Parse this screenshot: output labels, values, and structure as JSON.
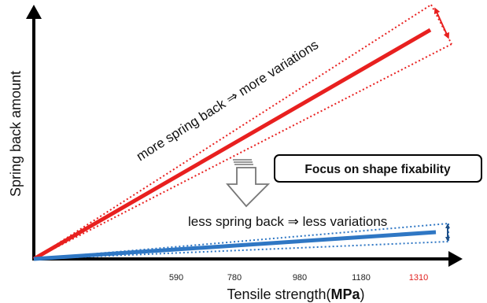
{
  "axes": {
    "x_title": "Tensile strength",
    "x_unit": "MPa",
    "y_title": "Spring back amount"
  },
  "x_ticks": [
    {
      "label": "590",
      "highlight": false
    },
    {
      "label": "780",
      "highlight": false
    },
    {
      "label": "980",
      "highlight": false
    },
    {
      "label": "1180",
      "highlight": false
    },
    {
      "label": "1310",
      "highlight": true
    }
  ],
  "annotations": {
    "upper": "more spring back ⇒ more variations",
    "lower": "less spring back ⇒ less variations",
    "callout": "Focus on shape fixability"
  },
  "colors": {
    "axis": "#000000",
    "high_strength": "#e8201f",
    "low_strength": "#2f77c4",
    "range_arrow_upper": "#e8201f",
    "range_arrow_lower": "#1f4f86",
    "highlight_tick": "#e0201f"
  }
}
